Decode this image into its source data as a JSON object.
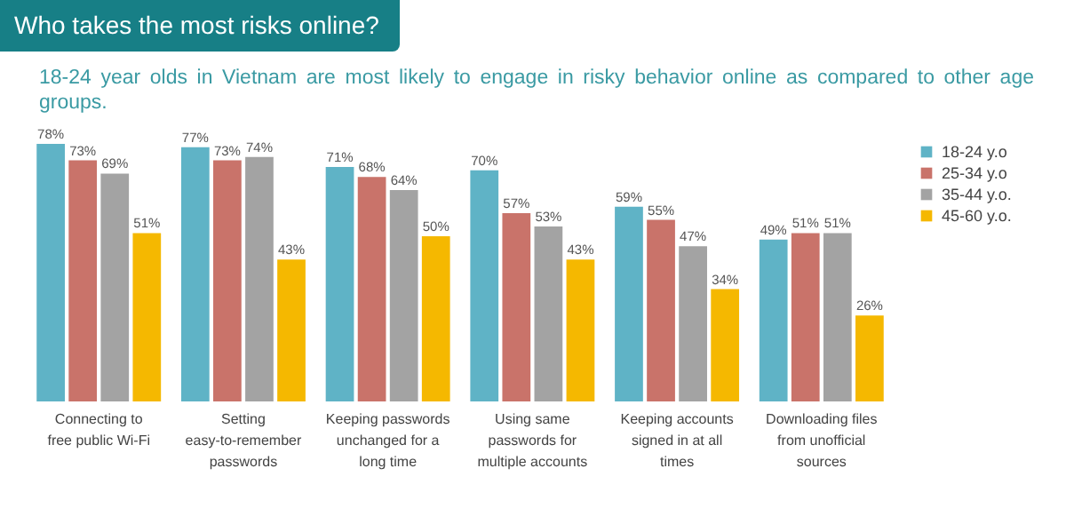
{
  "chart_data": {
    "type": "bar",
    "title": "Who takes the most risks online?",
    "subtitle": "18-24 year olds in Vietnam are most likely to engage in risky behavior online as compared to other age groups.",
    "categories": [
      "Connecting to free public Wi-Fi",
      "Setting easy-to-remember passwords",
      "Keeping passwords unchanged for a long time",
      "Using same passwords for multiple accounts",
      "Keeping accounts signed in at all times",
      "Downloading files from unofficial sources"
    ],
    "series": [
      {
        "name": "18-24 y.o",
        "color": "#5fb3c6",
        "values": [
          78,
          77,
          71,
          70,
          59,
          49
        ],
        "value_labels": [
          "78%",
          "77%",
          "71%",
          "70%",
          "59%",
          "49%"
        ]
      },
      {
        "name": "25-34 y.o",
        "color": "#c9736a",
        "values": [
          73,
          73,
          68,
          57,
          55,
          51
        ],
        "value_labels": [
          "73%",
          "73%",
          "68%",
          "57%",
          "55%",
          "51%"
        ]
      },
      {
        "name": "35-44 y.o.",
        "color": "#a3a3a3",
        "values": [
          69,
          74,
          64,
          53,
          47,
          51
        ],
        "value_labels": [
          "69%",
          "74%",
          "64%",
          "53%",
          "47%",
          "51%"
        ]
      },
      {
        "name": "45-60 y.o.",
        "color": "#f5b800",
        "values": [
          51,
          43,
          50,
          43,
          34,
          26
        ],
        "value_labels": [
          "51%",
          "43%",
          "50%",
          "43%",
          "34%",
          "26%"
        ]
      }
    ],
    "legend": "right",
    "grid": false
  }
}
